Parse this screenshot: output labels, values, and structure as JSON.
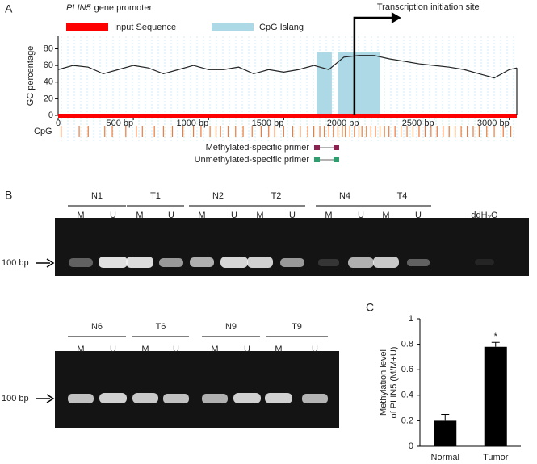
{
  "panel_labels": [
    "A",
    "B",
    "C"
  ],
  "chart_data": [
    {
      "type": "line",
      "gene": "PLIN5",
      "title": "gene promoter",
      "y_label": "GC percentage",
      "color": "#222222",
      "x": [
        0,
        100,
        200,
        300,
        400,
        500,
        600,
        700,
        800,
        900,
        1000,
        1100,
        1200,
        1300,
        1400,
        1500,
        1600,
        1700,
        1800,
        1900,
        2000,
        2100,
        2200,
        2300,
        2400,
        2500,
        2600,
        2700,
        2800,
        2900,
        3000,
        3050
      ],
      "values": [
        55,
        60,
        58,
        50,
        55,
        60,
        57,
        50,
        55,
        60,
        55,
        55,
        58,
        50,
        55,
        52,
        55,
        60,
        55,
        70,
        72,
        72,
        68,
        65,
        62,
        60,
        58,
        55,
        50,
        45,
        55,
        57
      ],
      "xlim": [
        0,
        3050
      ],
      "ylim": [
        0,
        95
      ],
      "xticks": [
        0,
        {
          "value": 500,
          "label": "500 bp"
        },
        {
          "value": 1000,
          "label": "1000 bp"
        },
        {
          "value": 1500,
          "label": "1500 bp"
        },
        {
          "value": 2000,
          "label": "2000 bp"
        },
        {
          "value": 2500,
          "label": "2500 bp"
        },
        {
          "value": 3000,
          "label": "3000 bp"
        }
      ],
      "yticks": [
        0,
        20,
        40,
        60,
        80
      ],
      "input_sequence": {
        "name": "Input Sequence",
        "color": "#ff0000",
        "range": [
          0,
          3050
        ]
      },
      "cpg_islands": {
        "name": "CpG Islang",
        "color": "#add8e6",
        "text_color": "#2aa8c0",
        "regions": [
          [
            1720,
            1820
          ],
          [
            1860,
            2140
          ]
        ]
      },
      "annotation": {
        "text": "Transcription initiation site",
        "x": 1970
      },
      "cpg_label": "CpG",
      "cpg_color": "#f07a3a",
      "cpg_sites": [
        20,
        140,
        200,
        310,
        360,
        450,
        520,
        560,
        640,
        700,
        760,
        830,
        900,
        950,
        1010,
        1050,
        1080,
        1130,
        1180,
        1230,
        1290,
        1350,
        1400,
        1440,
        1500,
        1560,
        1610,
        1660,
        1700,
        1740,
        1770,
        1800,
        1830,
        1860,
        1890,
        1910,
        1940,
        1970,
        2000,
        2020,
        2050,
        2080,
        2110,
        2140,
        2170,
        2200,
        2240,
        2280,
        2320,
        2360,
        2400,
        2440,
        2480,
        2520,
        2560,
        2600,
        2640,
        2680,
        2720,
        2760,
        2800,
        2850,
        2900,
        2960,
        3010
      ],
      "primers": [
        {
          "name": "Methylated-specific primer",
          "color": "#8b2252"
        },
        {
          "name": "Unmethylated-specific primer",
          "color": "#2e9e6e"
        }
      ]
    },
    {
      "type": "bar",
      "y_label": [
        "Methylation level",
        "of PLIN5 (M/M+U)"
      ],
      "categories": [
        "Normal",
        "Tumor"
      ],
      "values": [
        0.2,
        0.78
      ],
      "errors": [
        0.05,
        0.035
      ],
      "color": "#000000",
      "ylim": [
        0,
        1
      ],
      "yticks": [
        0,
        0.2,
        0.4,
        0.6,
        0.8,
        1
      ],
      "annotation": {
        "text": "*",
        "category": 1
      }
    }
  ],
  "gels": [
    {
      "groups": [
        {
          "name": "N1",
          "lanes": [
            "M",
            "U"
          ]
        },
        {
          "name": "T1",
          "lanes": [
            "M",
            "U"
          ]
        },
        {
          "name": "N2",
          "lanes": [
            "M",
            "U"
          ]
        },
        {
          "name": "T2",
          "lanes": [
            "M",
            "U"
          ]
        },
        {
          "name": "N4",
          "lanes": [
            "M",
            "U"
          ]
        },
        {
          "name": "T4",
          "lanes": [
            "M",
            "U"
          ]
        }
      ],
      "control": {
        "text": "ddH",
        "sub": "2",
        "tail": "O"
      },
      "marker": "100 bp"
    },
    {
      "groups": [
        {
          "name": "N6",
          "lanes": [
            "M",
            "U"
          ]
        },
        {
          "name": "T6",
          "lanes": [
            "M",
            "U"
          ]
        },
        {
          "name": "N9",
          "lanes": [
            "M",
            "U"
          ]
        },
        {
          "name": "T9",
          "lanes": [
            "M",
            "U"
          ]
        }
      ],
      "marker": "100 bp"
    }
  ]
}
